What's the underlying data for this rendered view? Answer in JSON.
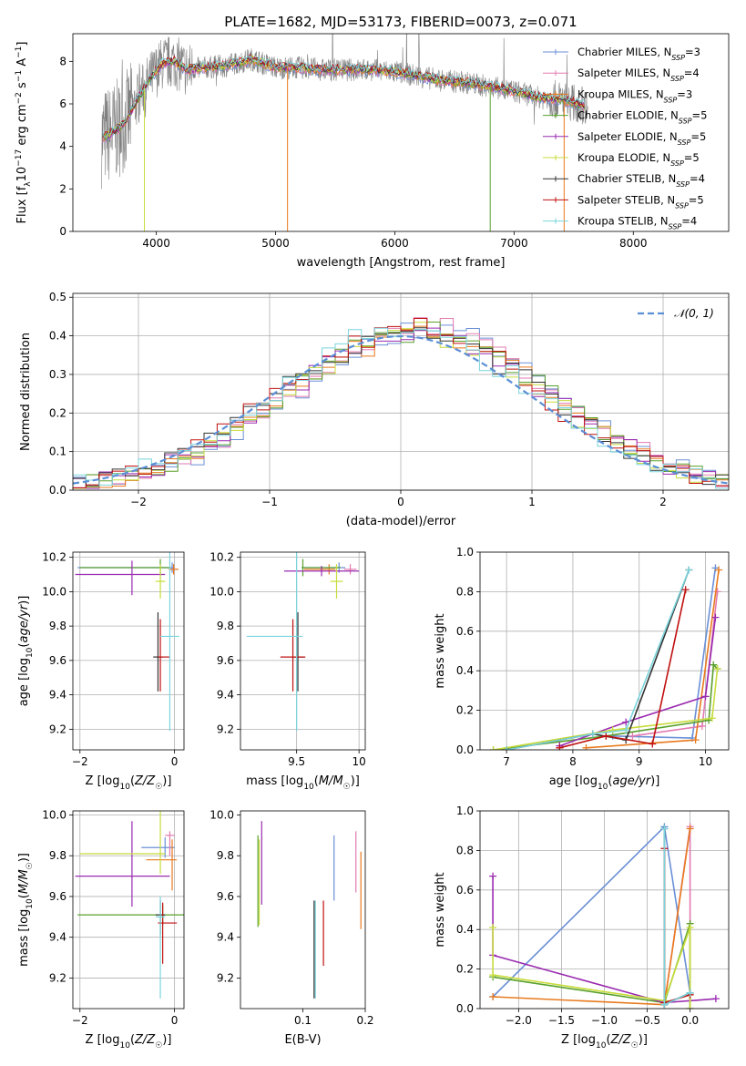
{
  "figure_title": "PLATE=1682, MJD=53173, FIBERID=0073, z=0.071",
  "colors": {
    "Chabrier MILES": "#6a8fd6",
    "Salpeter MILES": "#e27bb0",
    "Kroupa MILES": "#e87a1e",
    "Chabrier ELODIE": "#5aa02c",
    "Salpeter ELODIE": "#9a2bb0",
    "Kroupa ELODIE": "#c8dc3c",
    "Chabrier STELIB": "#333333",
    "Salpeter STELIB": "#c01010",
    "Kroupa STELIB": "#7ad4dc",
    "data": "#808080",
    "grid": "#b0b0b0",
    "normal": "#5b8fd6"
  },
  "chart_data": [
    {
      "id": "spectrum",
      "type": "line",
      "xlabel": "wavelength [Angstrom, rest frame]",
      "ylabel": "Flux [f_λ 10^-17 erg cm^-2 s^-1 A^-1]",
      "xlim": [
        3300,
        8800
      ],
      "ylim": [
        0,
        9.3
      ],
      "xticks": [
        4000,
        5000,
        6000,
        7000,
        8000
      ],
      "yticks": [
        0,
        2,
        4,
        6,
        8
      ],
      "grid": false,
      "legend_position": "right",
      "legend": [
        {
          "name": "Chabrier MILES",
          "nssp": "3"
        },
        {
          "name": "Salpeter MILES",
          "nssp": "4"
        },
        {
          "name": "Kroupa MILES",
          "nssp": "3"
        },
        {
          "name": "Chabrier ELODIE",
          "nssp": "5"
        },
        {
          "name": "Salpeter ELODIE",
          "nssp": "5"
        },
        {
          "name": "Kroupa ELODIE",
          "nssp": "5"
        },
        {
          "name": "Chabrier STELIB",
          "nssp": "4"
        },
        {
          "name": "Salpeter STELIB",
          "nssp": "5"
        },
        {
          "name": "Kroupa STELIB",
          "nssp": "4"
        }
      ],
      "continuum": {
        "x": [
          3550,
          3650,
          3750,
          3850,
          3950,
          4050,
          4150,
          4250,
          4400,
          4600,
          4800,
          5000,
          5200,
          5400,
          5600,
          5800,
          6000,
          6200,
          6400,
          6600,
          6800,
          7000,
          7200,
          7400,
          7600
        ],
        "y": [
          4.4,
          4.7,
          5.2,
          6.3,
          7.2,
          7.9,
          8.0,
          7.6,
          7.7,
          7.8,
          8.1,
          7.7,
          7.7,
          7.6,
          7.6,
          7.6,
          7.5,
          7.3,
          7.1,
          7.0,
          6.8,
          6.6,
          6.3,
          6.2,
          5.9
        ]
      }
    },
    {
      "id": "residuals",
      "type": "histogram",
      "xlabel": "(data-model)/error",
      "ylabel": "Normed distribution",
      "xlim": [
        -2.5,
        2.5
      ],
      "ylim": [
        0,
        0.51
      ],
      "xticks": [
        -2,
        -1,
        0,
        1,
        2
      ],
      "yticks": [
        0.0,
        0.1,
        0.2,
        0.3,
        0.4,
        0.5
      ],
      "grid": true,
      "legend_position": "top-right",
      "legend": "𝒩(0, 1)"
    },
    {
      "id": "age-vs-Z",
      "type": "errorbar",
      "xlabel": "Z [log10(Z/Z☉)]",
      "ylabel": "age  [log10(age/yr)]",
      "xlim": [
        -2.15,
        0.2
      ],
      "ylim": [
        9.08,
        10.23
      ],
      "xticks": [
        -2,
        0
      ],
      "yticks": [
        9.2,
        9.4,
        9.6,
        9.8,
        10.0,
        10.2
      ],
      "grid": true,
      "points": [
        {
          "model": "Chabrier MILES",
          "x": -0.05,
          "xerr": [
            2.0,
            0.05
          ],
          "y": 10.14,
          "yerr": [
            0.03,
            0.03
          ]
        },
        {
          "model": "Salpeter MILES",
          "x": -0.02,
          "xerr": [
            0.1,
            0.1
          ],
          "y": 10.13,
          "yerr": [
            0.03,
            0.03
          ]
        },
        {
          "model": "Kroupa MILES",
          "x": -0.02,
          "xerr": [
            0.1,
            0.1
          ],
          "y": 10.13,
          "yerr": [
            0.03,
            0.03
          ]
        },
        {
          "model": "Chabrier ELODIE",
          "x": -0.3,
          "xerr": [
            1.7,
            0.2
          ],
          "y": 10.14,
          "yerr": [
            0.05,
            0.05
          ]
        },
        {
          "model": "Salpeter ELODIE",
          "x": -0.9,
          "xerr": [
            1.2,
            0.7
          ],
          "y": 10.1,
          "yerr": [
            0.12,
            0.08
          ]
        },
        {
          "model": "Kroupa ELODIE",
          "x": -0.3,
          "xerr": [
            0.1,
            0.1
          ],
          "y": 10.06,
          "yerr": [
            0.1,
            0.1
          ]
        },
        {
          "model": "Chabrier STELIB",
          "x": -0.35,
          "xerr": [
            0.1,
            0.1
          ],
          "y": 9.62,
          "yerr": [
            0.2,
            0.26
          ]
        },
        {
          "model": "Salpeter STELIB",
          "x": -0.3,
          "xerr": [
            0.05,
            0.2
          ],
          "y": 9.62,
          "yerr": [
            0.2,
            0.22
          ]
        },
        {
          "model": "Kroupa STELIB",
          "x": -0.1,
          "xerr": [
            0.2,
            0.2
          ],
          "y": 9.74,
          "yerr": [
            0.55,
            0.55
          ]
        }
      ]
    },
    {
      "id": "age-vs-mass",
      "type": "errorbar",
      "xlabel": "mass [log10(M/M☉)]",
      "ylabel": "",
      "xlim": [
        9.05,
        10.05
      ],
      "ylim": [
        9.08,
        10.23
      ],
      "xticks": [
        9.5,
        10.0
      ],
      "yticks": [
        9.2,
        9.4,
        9.6,
        9.8,
        10.0,
        10.2
      ],
      "grid": true,
      "points": [
        {
          "model": "Chabrier MILES",
          "x": 9.84,
          "xerr": [
            0.3,
            0.05
          ],
          "y": 10.14,
          "yerr": [
            0.03,
            0.03
          ]
        },
        {
          "model": "Salpeter MILES",
          "x": 9.93,
          "xerr": [
            0.05,
            0.05
          ],
          "y": 10.13,
          "yerr": [
            0.03,
            0.03
          ]
        },
        {
          "model": "Kroupa MILES",
          "x": 9.76,
          "xerr": [
            0.2,
            0.05
          ],
          "y": 10.13,
          "yerr": [
            0.03,
            0.03
          ]
        },
        {
          "model": "Chabrier ELODIE",
          "x": 9.55,
          "xerr": [
            0.01,
            0.3
          ],
          "y": 10.14,
          "yerr": [
            0.05,
            0.05
          ]
        },
        {
          "model": "Salpeter ELODIE",
          "x": 9.7,
          "xerr": [
            0.3,
            0.3
          ],
          "y": 10.12,
          "yerr": [
            0.03,
            0.03
          ]
        },
        {
          "model": "Kroupa ELODIE",
          "x": 9.82,
          "xerr": [
            0.05,
            0.05
          ],
          "y": 10.06,
          "yerr": [
            0.1,
            0.1
          ]
        },
        {
          "model": "Chabrier STELIB",
          "x": 9.51,
          "xerr": [
            0.05,
            0.05
          ],
          "y": 9.62,
          "yerr": [
            0.2,
            0.26
          ]
        },
        {
          "model": "Salpeter STELIB",
          "x": 9.47,
          "xerr": [
            0.1,
            0.1
          ],
          "y": 9.62,
          "yerr": [
            0.2,
            0.22
          ]
        },
        {
          "model": "Kroupa STELIB",
          "x": 9.5,
          "xerr": [
            0.4,
            0.05
          ],
          "y": 9.74,
          "yerr": [
            0.55,
            0.55
          ]
        }
      ]
    },
    {
      "id": "weight-vs-age",
      "type": "line",
      "xlabel": "age  [log10(age/yr)]",
      "ylabel": "mass weight",
      "xlim": [
        6.6,
        10.35
      ],
      "ylim": [
        0,
        1
      ],
      "xticks": [
        7,
        8,
        9,
        10
      ],
      "yticks": [
        0.0,
        0.2,
        0.4,
        0.6,
        0.8,
        1.0
      ],
      "grid": true,
      "series": [
        {
          "model": "Chabrier MILES",
          "x": [
            8.6,
            9.8,
            10.15
          ],
          "y": [
            0.07,
            0.06,
            0.92
          ]
        },
        {
          "model": "Salpeter MILES",
          "x": [
            8.9,
            9.95,
            10.18
          ],
          "y": [
            0.07,
            0.12,
            0.8
          ]
        },
        {
          "model": "Kroupa MILES",
          "x": [
            8.2,
            9.85,
            10.2
          ],
          "y": [
            0.01,
            0.05,
            0.91
          ]
        },
        {
          "model": "Chabrier ELODIE",
          "x": [
            6.8,
            8.5,
            10.05,
            10.12,
            10.18
          ],
          "y": [
            0.0,
            0.07,
            0.15,
            0.43,
            0.41
          ]
        },
        {
          "model": "Salpeter ELODIE",
          "x": [
            7.8,
            8.8,
            10.0,
            10.15
          ],
          "y": [
            0.02,
            0.14,
            0.27,
            0.67
          ]
        },
        {
          "model": "Kroupa ELODIE",
          "x": [
            6.8,
            8.6,
            10.1,
            10.18
          ],
          "y": [
            0.0,
            0.1,
            0.16,
            0.41
          ]
        },
        {
          "model": "Chabrier STELIB",
          "x": [
            7.0,
            8.3,
            8.8,
            9.75
          ],
          "y": [
            0.0,
            0.08,
            0.05,
            0.91
          ]
        },
        {
          "model": "Salpeter STELIB",
          "x": [
            7.8,
            8.5,
            9.2,
            9.7
          ],
          "y": [
            0.01,
            0.07,
            0.03,
            0.81
          ]
        },
        {
          "model": "Kroupa STELIB",
          "x": [
            7.0,
            8.3,
            8.8,
            9.75
          ],
          "y": [
            0.0,
            0.08,
            0.1,
            0.91
          ]
        }
      ]
    },
    {
      "id": "mass-vs-Z",
      "type": "errorbar",
      "xlabel": "Z [log10(Z/Z☉)]",
      "ylabel": "mass [log10(M/M☉)]",
      "xlim": [
        -2.15,
        0.2
      ],
      "ylim": [
        9.05,
        10.02
      ],
      "xticks": [
        -2,
        0
      ],
      "yticks": [
        9.2,
        9.4,
        9.6,
        9.8,
        10.0
      ],
      "grid": true,
      "points": [
        {
          "model": "Chabrier MILES",
          "x": -0.2,
          "xerr": [
            0.5,
            0.2
          ],
          "y": 9.84,
          "yerr": [
            0.05,
            0.05
          ]
        },
        {
          "model": "Salpeter MILES",
          "x": -0.1,
          "xerr": [
            0.1,
            0.1
          ],
          "y": 9.9,
          "yerr": [
            0.1,
            0.02
          ]
        },
        {
          "model": "Kroupa MILES",
          "x": -0.05,
          "xerr": [
            0.55,
            0.1
          ],
          "y": 9.78,
          "yerr": [
            0.15,
            0.1
          ]
        },
        {
          "model": "Chabrier ELODIE",
          "x": -0.25,
          "xerr": [
            1.8,
            0.45
          ],
          "y": 9.51,
          "yerr": [
            0.05,
            0.05
          ]
        },
        {
          "model": "Salpeter ELODIE",
          "x": -0.9,
          "xerr": [
            1.2,
            0.8
          ],
          "y": 9.7,
          "yerr": [
            0.15,
            0.27
          ]
        },
        {
          "model": "Kroupa ELODIE",
          "x": -0.3,
          "xerr": [
            1.7,
            0.1
          ],
          "y": 9.81,
          "yerr": [
            0.1,
            0.35
          ]
        },
        {
          "model": "Chabrier STELIB",
          "x": -0.3,
          "xerr": [
            0.1,
            0.1
          ],
          "y": 9.51,
          "yerr": [
            0.1,
            0.07
          ]
        },
        {
          "model": "Salpeter STELIB",
          "x": -0.25,
          "xerr": [
            0.1,
            0.3
          ],
          "y": 9.47,
          "yerr": [
            0.2,
            0.1
          ]
        },
        {
          "model": "Kroupa STELIB",
          "x": -0.3,
          "xerr": [
            0.1,
            0.1
          ],
          "y": 9.5,
          "yerr": [
            0.4,
            0.1
          ]
        }
      ]
    },
    {
      "id": "mass-vs-EBV",
      "type": "errorbar",
      "xlabel": "E(B-V)",
      "ylabel": "",
      "xlim": [
        0.0,
        0.2
      ],
      "ylim": [
        9.05,
        10.02
      ],
      "xticks": [
        0.1,
        0.2
      ],
      "yticks": [
        9.2,
        9.4,
        9.6,
        9.8,
        10.0
      ],
      "grid": false,
      "points": [
        {
          "model": "Chabrier MILES",
          "x": 0.15,
          "y": 9.74,
          "yerr": [
            0.16,
            0.16
          ]
        },
        {
          "model": "Salpeter MILES",
          "x": 0.185,
          "y": 9.76,
          "yerr": [
            0.14,
            0.16
          ]
        },
        {
          "model": "Kroupa MILES",
          "x": 0.193,
          "y": 9.64,
          "yerr": [
            0.2,
            0.18
          ]
        },
        {
          "model": "Chabrier ELODIE",
          "x": 0.028,
          "y": 9.7,
          "yerr": [
            0.25,
            0.2
          ]
        },
        {
          "model": "Salpeter ELODIE",
          "x": 0.034,
          "y": 9.76,
          "yerr": [
            0.2,
            0.21
          ]
        },
        {
          "model": "Kroupa ELODIE",
          "x": 0.03,
          "y": 9.66,
          "yerr": [
            0.2,
            0.22
          ]
        },
        {
          "model": "Chabrier STELIB",
          "x": 0.118,
          "y": 9.34,
          "yerr": [
            0.24,
            0.24
          ]
        },
        {
          "model": "Salpeter STELIB",
          "x": 0.133,
          "y": 9.42,
          "yerr": [
            0.16,
            0.16
          ]
        },
        {
          "model": "Kroupa STELIB",
          "x": 0.12,
          "y": 9.34,
          "yerr": [
            0.24,
            0.24
          ]
        }
      ]
    },
    {
      "id": "weight-vs-Z",
      "type": "line",
      "xlabel": "Z [log10(Z/Z☉)]",
      "ylabel": "mass weight",
      "xlim": [
        -2.45,
        0.45
      ],
      "ylim": [
        0,
        1
      ],
      "xticks": [
        -2.0,
        -1.5,
        -1.0,
        -0.5,
        0.0
      ],
      "yticks": [
        0.0,
        0.2,
        0.4,
        0.6,
        0.8,
        1.0
      ],
      "grid": true,
      "series": [
        {
          "model": "Chabrier MILES",
          "x": [
            -2.3,
            -0.3,
            0.0,
            0.0
          ],
          "y": [
            0.06,
            0.92,
            0.08,
            0.0
          ]
        },
        {
          "model": "Salpeter MILES",
          "x": [
            -0.3,
            0.0,
            0.0
          ],
          "y": [
            0.02,
            0.92,
            0.0
          ]
        },
        {
          "model": "Kroupa MILES",
          "x": [
            -2.3,
            -0.3,
            0.0
          ],
          "y": [
            0.06,
            0.02,
            0.91
          ]
        },
        {
          "model": "Chabrier ELODIE",
          "x": [
            -2.3,
            -0.3,
            0.0,
            0.0
          ],
          "y": [
            0.16,
            0.03,
            0.43,
            0.0
          ]
        },
        {
          "model": "Salpeter ELODIE",
          "x": [
            -2.3,
            -2.3,
            -0.3,
            0.3
          ],
          "y": [
            0.67,
            0.27,
            0.03,
            0.05
          ]
        },
        {
          "model": "Kroupa ELODIE",
          "x": [
            -2.3,
            -2.3,
            -0.3,
            0.0,
            0.0
          ],
          "y": [
            0.41,
            0.17,
            0.04,
            0.41,
            0.0
          ]
        },
        {
          "model": "Chabrier STELIB",
          "x": [
            -0.3,
            -0.3,
            0.0
          ],
          "y": [
            0.91,
            0.02,
            0.08
          ]
        },
        {
          "model": "Salpeter STELIB",
          "x": [
            -0.3,
            -0.3,
            0.0
          ],
          "y": [
            0.81,
            0.03,
            0.07
          ]
        },
        {
          "model": "Kroupa STELIB",
          "x": [
            -0.3,
            -0.3,
            0.0
          ],
          "y": [
            0.91,
            0.02,
            0.08
          ]
        }
      ]
    }
  ]
}
